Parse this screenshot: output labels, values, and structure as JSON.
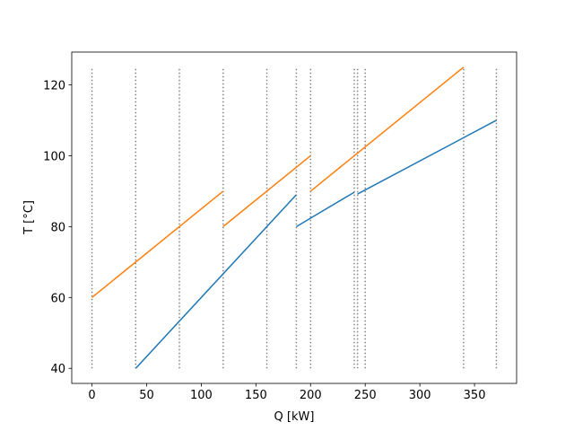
{
  "chart_data": {
    "type": "line",
    "x_label": "Q [kW]",
    "y_label": "T [°C]",
    "series": [
      {
        "color": "#1f77b4",
        "x": [
          40,
          187,
          null,
          187,
          240,
          null,
          243,
          370
        ],
        "values": [
          40,
          89,
          null,
          80,
          89.7,
          null,
          89.2,
          110
        ]
      },
      {
        "color": "#ff7f0e",
        "x": [
          0,
          120,
          null,
          120,
          200,
          null,
          200,
          340
        ],
        "values": [
          60,
          90,
          null,
          80,
          100,
          null,
          90,
          125
        ]
      }
    ],
    "vlines": {
      "x": [
        0,
        40,
        80,
        120,
        160,
        187,
        200,
        240,
        243,
        250,
        340,
        370
      ],
      "ymin": 40,
      "ymax": 125,
      "color": "#808080"
    },
    "xlim": [
      -18.5,
      388.5
    ],
    "xticks": [
      0,
      50,
      100,
      150,
      200,
      250,
      300,
      350
    ],
    "ylim": [
      35.75,
      129.25
    ],
    "yticks": [
      40,
      60,
      80,
      100,
      120
    ],
    "grid": false
  }
}
